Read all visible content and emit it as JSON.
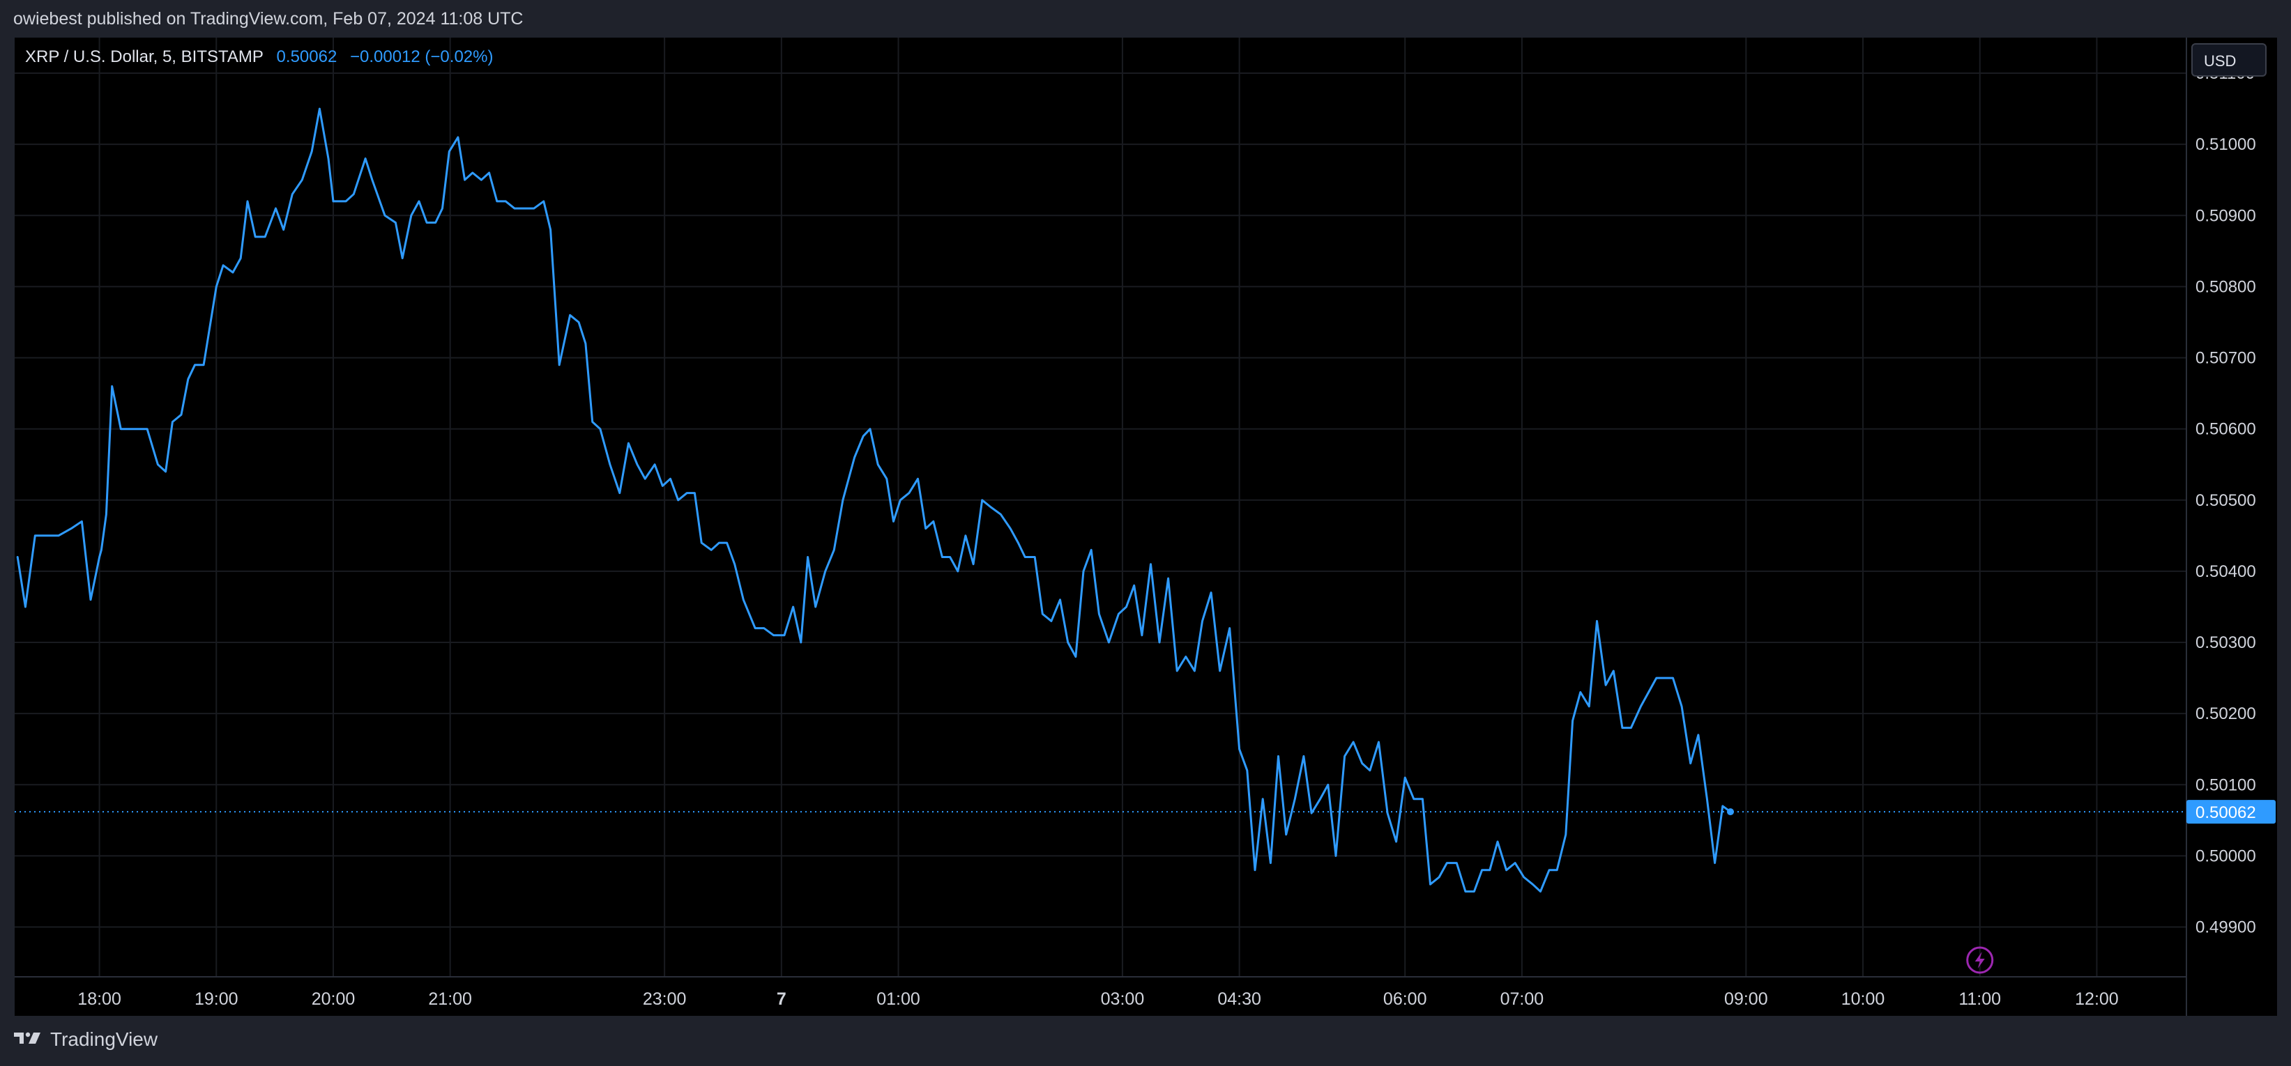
{
  "header": {
    "published_text": "owiebest published on TradingView.com, Feb 07, 2024 11:08 UTC"
  },
  "symbol": {
    "name": "XRP / U.S. Dollar, 5, BITSTAMP",
    "last_price": "0.50062",
    "change": "−0.00012 (−0.02%)"
  },
  "currency_button": {
    "label": "USD"
  },
  "footer": {
    "brand": "TradingView"
  },
  "colors": {
    "line": "#2f9bff",
    "background": "#000000",
    "page": "#1f222b",
    "grid": "#191b20",
    "axis_text": "#d1d4dc",
    "price_tag": "#2f9bff",
    "alert_icon": "#9c27b0"
  },
  "icons": [
    "tradingview-logo-icon",
    "lightning-alert-icon"
  ],
  "chart_data": {
    "type": "line",
    "title": "XRP / U.S. Dollar, 5, BITSTAMP",
    "xlabel": "",
    "ylabel": "",
    "ylim": [
      0.4983,
      0.5115
    ],
    "y_ticks": [
      "0.49900",
      "0.50000",
      "0.50100",
      "0.50200",
      "0.50300",
      "0.50400",
      "0.50500",
      "0.50600",
      "0.50700",
      "0.50800",
      "0.50900",
      "0.51000",
      "0.51100"
    ],
    "x_ticks": [
      {
        "label": "18:00",
        "t": 0
      },
      {
        "label": "19:00",
        "t": 12
      },
      {
        "label": "20:00",
        "t": 24
      },
      {
        "label": "21:00",
        "t": 36
      },
      {
        "label": "23:00",
        "t": 58
      },
      {
        "label": "7",
        "t": 70,
        "bold": true
      },
      {
        "label": "01:00",
        "t": 82
      },
      {
        "label": "03:00",
        "t": 105
      },
      {
        "label": "04:30",
        "t": 117
      },
      {
        "label": "06:00",
        "t": 134
      },
      {
        "label": "07:00",
        "t": 146
      },
      {
        "label": "09:00",
        "t": 169
      },
      {
        "label": "10:00",
        "t": 181
      },
      {
        "label": "11:00",
        "t": 193
      },
      {
        "label": "12:00",
        "t": 205
      }
    ],
    "t_range": [
      -8.7,
      214.2
    ],
    "grid": true,
    "current_price": 0.50062,
    "current_price_label": "0.50062",
    "series": [
      {
        "values": [
          [
            -8.4,
            0.5042
          ],
          [
            -7.6,
            0.5035
          ],
          [
            -6.6,
            0.5045
          ],
          [
            -5.5,
            0.5045
          ],
          [
            -4.2,
            0.5045
          ],
          [
            -2.9,
            0.5046
          ],
          [
            -1.8,
            0.5047
          ],
          [
            -0.9,
            0.5036
          ],
          [
            0,
            0.5042
          ],
          [
            0.2,
            0.5043
          ],
          [
            0.7,
            0.5048
          ],
          [
            1.3,
            0.5066
          ],
          [
            2.2,
            0.506
          ],
          [
            3.2,
            0.506
          ],
          [
            4.1,
            0.506
          ],
          [
            4.9,
            0.506
          ],
          [
            6.0,
            0.5055
          ],
          [
            6.8,
            0.5054
          ],
          [
            7.5,
            0.5061
          ],
          [
            8.4,
            0.5062
          ],
          [
            9.1,
            0.5067
          ],
          [
            9.8,
            0.5069
          ],
          [
            10.7,
            0.5069
          ],
          [
            12.0,
            0.508
          ],
          [
            12.7,
            0.5083
          ],
          [
            13.7,
            0.5082
          ],
          [
            14.5,
            0.5084
          ],
          [
            15.2,
            0.5092
          ],
          [
            16.0,
            0.5087
          ],
          [
            17.0,
            0.5087
          ],
          [
            18.1,
            0.5091
          ],
          [
            18.9,
            0.5088
          ],
          [
            19.8,
            0.5093
          ],
          [
            20.8,
            0.5095
          ],
          [
            21.8,
            0.5099
          ],
          [
            22.6,
            0.5105
          ],
          [
            23.5,
            0.5098
          ],
          [
            24.0,
            0.5092
          ],
          [
            25.3,
            0.5092
          ],
          [
            26.1,
            0.5093
          ],
          [
            27.3,
            0.5098
          ],
          [
            28.0,
            0.5095
          ],
          [
            29.3,
            0.509
          ],
          [
            30.4,
            0.5089
          ],
          [
            31.1,
            0.5084
          ],
          [
            32.0,
            0.509
          ],
          [
            32.8,
            0.5092
          ],
          [
            33.6,
            0.5089
          ],
          [
            34.5,
            0.5089
          ],
          [
            35.2,
            0.5091
          ],
          [
            35.9,
            0.5099
          ],
          [
            36.8,
            0.5101
          ],
          [
            37.5,
            0.5095
          ],
          [
            38.3,
            0.5096
          ],
          [
            39.2,
            0.5095
          ],
          [
            40.0,
            0.5096
          ],
          [
            40.8,
            0.5092
          ],
          [
            41.7,
            0.5092
          ],
          [
            42.6,
            0.5091
          ],
          [
            43.6,
            0.5091
          ],
          [
            44.6,
            0.5091
          ],
          [
            45.6,
            0.5092
          ],
          [
            46.3,
            0.5088
          ],
          [
            47.2,
            0.5069
          ],
          [
            48.3,
            0.5076
          ],
          [
            49.2,
            0.5075
          ],
          [
            49.9,
            0.5072
          ],
          [
            50.6,
            0.5061
          ],
          [
            51.4,
            0.506
          ],
          [
            52.4,
            0.5055
          ],
          [
            53.4,
            0.5051
          ],
          [
            54.3,
            0.5058
          ],
          [
            55.2,
            0.5055
          ],
          [
            56.0,
            0.5053
          ],
          [
            57.0,
            0.5055
          ],
          [
            57.8,
            0.5052
          ],
          [
            58.6,
            0.5053
          ],
          [
            59.4,
            0.505
          ],
          [
            60.3,
            0.5051
          ],
          [
            61.1,
            0.5051
          ],
          [
            61.8,
            0.5044
          ],
          [
            62.8,
            0.5043
          ],
          [
            63.6,
            0.5044
          ],
          [
            64.4,
            0.5044
          ],
          [
            65.2,
            0.5041
          ],
          [
            66.1,
            0.5036
          ],
          [
            67.3,
            0.5032
          ],
          [
            68.2,
            0.5032
          ],
          [
            69.2,
            0.5031
          ],
          [
            70.3,
            0.5031
          ],
          [
            71.2,
            0.5035
          ],
          [
            72.0,
            0.503
          ],
          [
            72.7,
            0.5042
          ],
          [
            73.5,
            0.5035
          ],
          [
            74.5,
            0.504
          ],
          [
            75.4,
            0.5043
          ],
          [
            76.3,
            0.505
          ],
          [
            77.5,
            0.5056
          ],
          [
            78.4,
            0.5059
          ],
          [
            79.1,
            0.506
          ],
          [
            79.9,
            0.5055
          ],
          [
            80.8,
            0.5053
          ],
          [
            81.5,
            0.5047
          ],
          [
            82.2,
            0.505
          ],
          [
            83.1,
            0.5051
          ],
          [
            84.0,
            0.5053
          ],
          [
            84.8,
            0.5046
          ],
          [
            85.6,
            0.5047
          ],
          [
            86.5,
            0.5042
          ],
          [
            87.3,
            0.5042
          ],
          [
            88.1,
            0.504
          ],
          [
            88.9,
            0.5045
          ],
          [
            89.7,
            0.5041
          ],
          [
            90.6,
            0.505
          ],
          [
            91.5,
            0.5049
          ],
          [
            92.5,
            0.5048
          ],
          [
            93.5,
            0.5046
          ],
          [
            94.3,
            0.5044
          ],
          [
            95.0,
            0.5042
          ],
          [
            96.0,
            0.5042
          ],
          [
            96.8,
            0.5034
          ],
          [
            97.7,
            0.5033
          ],
          [
            98.6,
            0.5036
          ],
          [
            99.4,
            0.503
          ],
          [
            100.2,
            0.5028
          ],
          [
            101.0,
            0.504
          ],
          [
            101.8,
            0.5043
          ],
          [
            102.6,
            0.5034
          ],
          [
            103.6,
            0.503
          ],
          [
            104.6,
            0.5034
          ],
          [
            105.4,
            0.5035
          ],
          [
            106.2,
            0.5038
          ],
          [
            107.0,
            0.5031
          ],
          [
            107.9,
            0.5041
          ],
          [
            108.8,
            0.503
          ],
          [
            109.7,
            0.5039
          ],
          [
            110.6,
            0.5026
          ],
          [
            111.5,
            0.5028
          ],
          [
            112.4,
            0.5026
          ],
          [
            113.2,
            0.5033
          ],
          [
            114.1,
            0.5037
          ],
          [
            115.0,
            0.5026
          ],
          [
            116.0,
            0.5032
          ],
          [
            117.0,
            0.5015
          ],
          [
            117.8,
            0.5012
          ],
          [
            118.6,
            0.4998
          ],
          [
            119.4,
            0.5008
          ],
          [
            120.2,
            0.4999
          ],
          [
            121.0,
            0.5014
          ],
          [
            121.8,
            0.5003
          ],
          [
            122.7,
            0.5008
          ],
          [
            123.6,
            0.5014
          ],
          [
            124.4,
            0.5006
          ],
          [
            125.3,
            0.5008
          ],
          [
            126.1,
            0.501
          ],
          [
            126.9,
            0.5
          ],
          [
            127.8,
            0.5014
          ],
          [
            128.7,
            0.5016
          ],
          [
            129.6,
            0.5013
          ],
          [
            130.4,
            0.5012
          ],
          [
            131.3,
            0.5016
          ],
          [
            132.2,
            0.5006
          ],
          [
            133.1,
            0.5002
          ],
          [
            134.0,
            0.5011
          ],
          [
            134.9,
            0.5008
          ],
          [
            135.8,
            0.5008
          ],
          [
            136.6,
            0.4996
          ],
          [
            137.5,
            0.4997
          ],
          [
            138.3,
            0.4999
          ],
          [
            139.3,
            0.4999
          ],
          [
            140.2,
            0.4995
          ],
          [
            141.1,
            0.4995
          ],
          [
            141.9,
            0.4998
          ],
          [
            142.7,
            0.4998
          ],
          [
            143.5,
            0.5002
          ],
          [
            144.4,
            0.4998
          ],
          [
            145.3,
            0.4999
          ],
          [
            146.2,
            0.4997
          ],
          [
            147.1,
            0.4996
          ],
          [
            147.9,
            0.4995
          ],
          [
            148.8,
            0.4998
          ],
          [
            149.6,
            0.4998
          ],
          [
            150.5,
            0.5003
          ],
          [
            151.2,
            0.5019
          ],
          [
            152.0,
            0.5023
          ],
          [
            152.9,
            0.5021
          ],
          [
            153.7,
            0.5033
          ],
          [
            154.6,
            0.5024
          ],
          [
            155.4,
            0.5026
          ],
          [
            156.3,
            0.5018
          ],
          [
            157.2,
            0.5018
          ],
          [
            158.2,
            0.5021
          ],
          [
            159.0,
            0.5023
          ],
          [
            159.8,
            0.5025
          ],
          [
            160.7,
            0.5025
          ],
          [
            161.5,
            0.5025
          ],
          [
            162.4,
            0.5021
          ],
          [
            163.3,
            0.5013
          ],
          [
            164.1,
            0.5017
          ],
          [
            165.0,
            0.5008
          ],
          [
            165.8,
            0.4999
          ],
          [
            166.6,
            0.5007
          ],
          [
            167.4,
            0.50062
          ]
        ]
      }
    ]
  }
}
